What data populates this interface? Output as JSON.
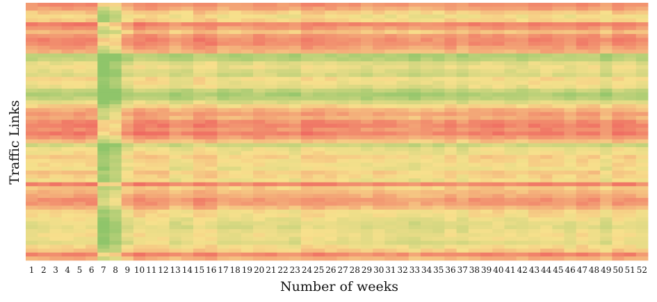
{
  "chart_data": {
    "type": "heatmap",
    "title": "",
    "xlabel": "Number of weeks",
    "ylabel": "Traffic Links",
    "x": [
      1,
      2,
      3,
      4,
      5,
      6,
      7,
      8,
      9,
      10,
      11,
      12,
      13,
      14,
      15,
      16,
      17,
      18,
      19,
      20,
      21,
      22,
      23,
      24,
      25,
      26,
      27,
      28,
      29,
      30,
      31,
      32,
      33,
      34,
      35,
      36,
      37,
      38,
      39,
      40,
      41,
      42,
      43,
      44,
      45,
      46,
      47,
      48,
      49,
      50,
      51,
      52
    ],
    "n_links": 66,
    "colormap": {
      "low": "#8fc56a",
      "mid": "#f7e08c",
      "high": "#ef6a61"
    },
    "row_profile": [
      0.82,
      0.74,
      0.58,
      0.48,
      0.55,
      0.88,
      0.78,
      0.62,
      0.8,
      0.86,
      0.84,
      0.76,
      0.68,
      0.18,
      0.22,
      0.4,
      0.44,
      0.38,
      0.34,
      0.5,
      0.46,
      0.42,
      0.24,
      0.14,
      0.2,
      0.38,
      0.55,
      0.68,
      0.76,
      0.7,
      0.84,
      0.88,
      0.82,
      0.9,
      0.78,
      0.62,
      0.3,
      0.44,
      0.48,
      0.56,
      0.52,
      0.5,
      0.46,
      0.58,
      0.54,
      0.48,
      0.88,
      0.58,
      0.66,
      0.72,
      0.8,
      0.78,
      0.66,
      0.52,
      0.5,
      0.44,
      0.4,
      0.38,
      0.42,
      0.46,
      0.44,
      0.4,
      0.5,
      0.58,
      0.86,
      0.7
    ],
    "column_profile": [
      0.02,
      0.03,
      0.03,
      0.04,
      0.05,
      0.05,
      -0.42,
      -0.3,
      -0.05,
      0.06,
      0.05,
      0.04,
      -0.05,
      -0.03,
      0.07,
      0.06,
      -0.04,
      -0.03,
      -0.02,
      0.03,
      0.0,
      -0.02,
      -0.05,
      0.05,
      0.04,
      0.02,
      0.0,
      -0.01,
      -0.04,
      0.0,
      -0.02,
      -0.03,
      -0.08,
      -0.03,
      -0.04,
      0.02,
      -0.05,
      0.02,
      0.03,
      0.04,
      0.0,
      -0.01,
      0.04,
      0.06,
      0.03,
      -0.02,
      0.05,
      0.04,
      -0.06,
      0.05,
      0.04,
      -0.02
    ]
  }
}
